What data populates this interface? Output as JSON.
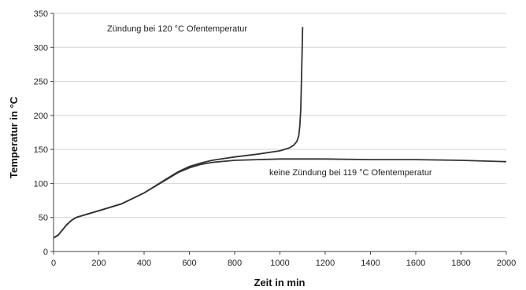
{
  "chart_data": {
    "type": "line",
    "title": "",
    "xlabel": "Zeit in min",
    "ylabel": "Temperatur in °C",
    "xlim": [
      0,
      2000
    ],
    "ylim": [
      0,
      350
    ],
    "xticks": [
      0,
      200,
      400,
      600,
      800,
      1000,
      1200,
      1400,
      1600,
      1800,
      2000
    ],
    "yticks": [
      0,
      50,
      100,
      150,
      200,
      250,
      300,
      350
    ],
    "grid": "horizontal",
    "legend": "none",
    "series": [
      {
        "annotation": "Zündung bei 120 °C Ofentemperatur",
        "points": [
          [
            0,
            20
          ],
          [
            20,
            24
          ],
          [
            40,
            32
          ],
          [
            60,
            40
          ],
          [
            80,
            46
          ],
          [
            100,
            50
          ],
          [
            150,
            55
          ],
          [
            200,
            60
          ],
          [
            300,
            70
          ],
          [
            400,
            86
          ],
          [
            500,
            107
          ],
          [
            550,
            117
          ],
          [
            600,
            125
          ],
          [
            650,
            130
          ],
          [
            700,
            134
          ],
          [
            800,
            139
          ],
          [
            900,
            143
          ],
          [
            1000,
            148
          ],
          [
            1040,
            152
          ],
          [
            1060,
            156
          ],
          [
            1075,
            162
          ],
          [
            1083,
            170
          ],
          [
            1088,
            185
          ],
          [
            1092,
            210
          ],
          [
            1095,
            250
          ],
          [
            1098,
            295
          ],
          [
            1100,
            330
          ]
        ]
      },
      {
        "annotation": "keine Zündung bei 119 °C Ofentemperatur",
        "points": [
          [
            0,
            20
          ],
          [
            20,
            24
          ],
          [
            40,
            32
          ],
          [
            60,
            40
          ],
          [
            80,
            46
          ],
          [
            100,
            50
          ],
          [
            150,
            55
          ],
          [
            200,
            60
          ],
          [
            300,
            70
          ],
          [
            400,
            86
          ],
          [
            500,
            106
          ],
          [
            550,
            116
          ],
          [
            600,
            123
          ],
          [
            650,
            128
          ],
          [
            700,
            131
          ],
          [
            800,
            134
          ],
          [
            900,
            135
          ],
          [
            1000,
            136
          ],
          [
            1200,
            136
          ],
          [
            1400,
            135
          ],
          [
            1600,
            135
          ],
          [
            1800,
            134
          ],
          [
            2000,
            132
          ]
        ]
      }
    ]
  }
}
